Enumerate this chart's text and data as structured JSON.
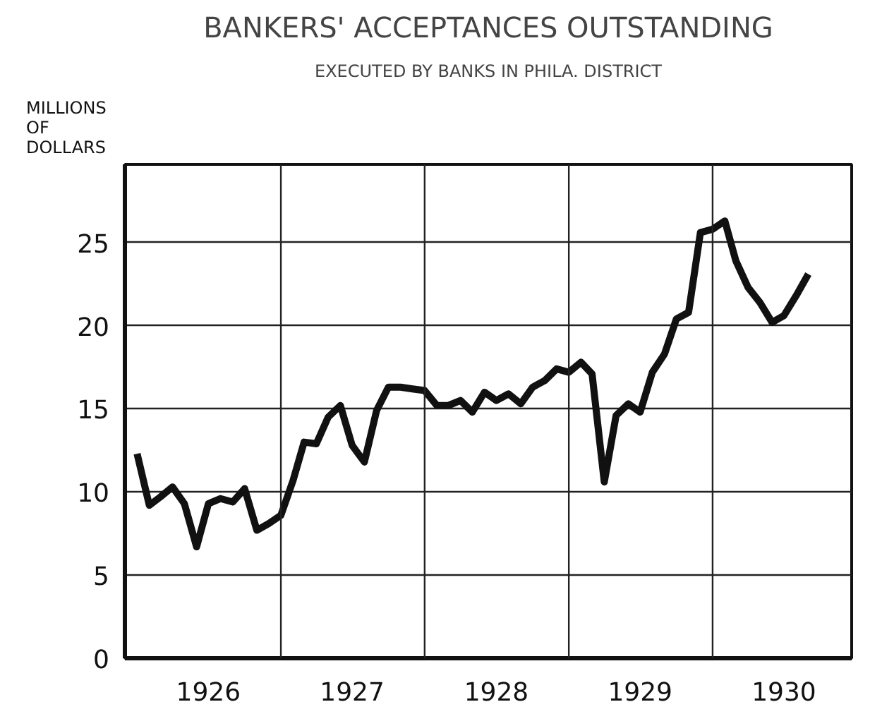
{
  "chart_data": {
    "type": "line",
    "title": "BANKERS' ACCEPTANCES OUTSTANDING",
    "subtitle": "EXECUTED BY BANKS IN PHILA. DISTRICT",
    "ylabel": "MILLIONS OF DOLLARS",
    "x": [
      "1926-01",
      "1926-02",
      "1926-03",
      "1926-04",
      "1926-05",
      "1926-06",
      "1926-07",
      "1926-08",
      "1926-09",
      "1926-10",
      "1926-11",
      "1926-12",
      "1927-01",
      "1927-02",
      "1927-03",
      "1927-04",
      "1927-05",
      "1927-06",
      "1927-07",
      "1927-08",
      "1927-09",
      "1927-10",
      "1927-11",
      "1927-12",
      "1928-01",
      "1928-02",
      "1928-03",
      "1928-04",
      "1928-05",
      "1928-06",
      "1928-07",
      "1928-08",
      "1928-09",
      "1928-10",
      "1928-11",
      "1928-12",
      "1929-01",
      "1929-02",
      "1929-03",
      "1929-04",
      "1929-05",
      "1929-06",
      "1929-07",
      "1929-08",
      "1929-09",
      "1929-10",
      "1929-11",
      "1929-12",
      "1930-01",
      "1930-02",
      "1930-03",
      "1930-04",
      "1930-05",
      "1930-06",
      "1930-07",
      "1930-08",
      "1930-09"
    ],
    "series": [
      {
        "color": "#111111",
        "values": [
          12.3,
          9.2,
          9.7,
          10.3,
          9.3,
          6.7,
          9.3,
          9.6,
          9.4,
          10.2,
          7.7,
          8.1,
          8.6,
          10.7,
          13.0,
          12.9,
          14.5,
          15.2,
          12.8,
          11.8,
          14.9,
          16.3,
          16.3,
          16.2,
          16.1,
          15.2,
          15.2,
          15.5,
          14.8,
          16.0,
          15.5,
          15.9,
          15.3,
          16.3,
          16.7,
          17.4,
          17.2,
          17.8,
          17.1,
          10.6,
          14.6,
          15.3,
          14.8,
          17.2,
          18.3,
          20.4,
          20.8,
          25.6,
          25.8,
          26.3,
          23.9,
          22.3,
          21.4,
          20.2,
          20.6,
          21.8,
          23.1
        ]
      }
    ],
    "xlim": [
      "1925-12-01",
      "1930-12-20"
    ],
    "xticks": [
      {
        "value": "1926-07-01",
        "label": "1926"
      },
      {
        "value": "1927-07-01",
        "label": "1927"
      },
      {
        "value": "1928-07-01",
        "label": "1928"
      },
      {
        "value": "1929-07-01",
        "label": "1929"
      },
      {
        "value": "1930-07-01",
        "label": "1930"
      }
    ],
    "ylim": [
      0,
      29.7
    ],
    "yticks": [
      0,
      5,
      10,
      15,
      20,
      25
    ],
    "grid": "y",
    "ref_lines": [
      {
        "axis": "x",
        "value": "1927-01-01",
        "color": "#222222"
      },
      {
        "axis": "x",
        "value": "1928-01-01",
        "color": "#222222"
      },
      {
        "axis": "x",
        "value": "1929-01-01",
        "color": "#222222"
      },
      {
        "axis": "x",
        "value": "1930-01-01",
        "color": "#222222"
      }
    ],
    "marker": "none",
    "line_style": "solid"
  }
}
